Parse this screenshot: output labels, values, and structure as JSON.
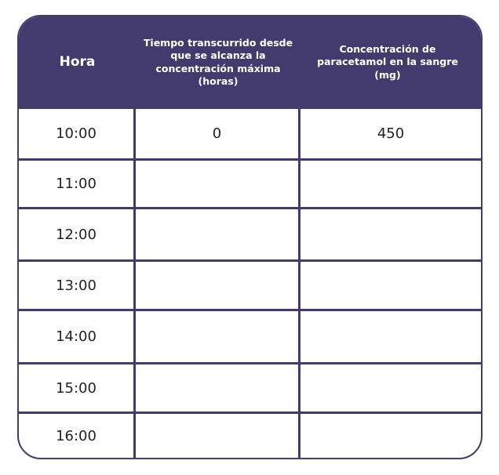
{
  "table": {
    "headers": [
      "Hora",
      "Tiempo transcurrido desde que se alcanza la concentración máxima (horas)",
      "Concentración de paracetamol en la sangre (mg)"
    ],
    "rows": [
      [
        "10:00",
        "0",
        "450"
      ],
      [
        "11:00",
        "",
        ""
      ],
      [
        "12:00",
        "",
        ""
      ],
      [
        "13:00",
        "",
        ""
      ],
      [
        "14:00",
        "",
        ""
      ],
      [
        "15:00",
        "",
        ""
      ],
      [
        "16:00",
        "",
        ""
      ]
    ],
    "header_color": "#433a6e"
  }
}
